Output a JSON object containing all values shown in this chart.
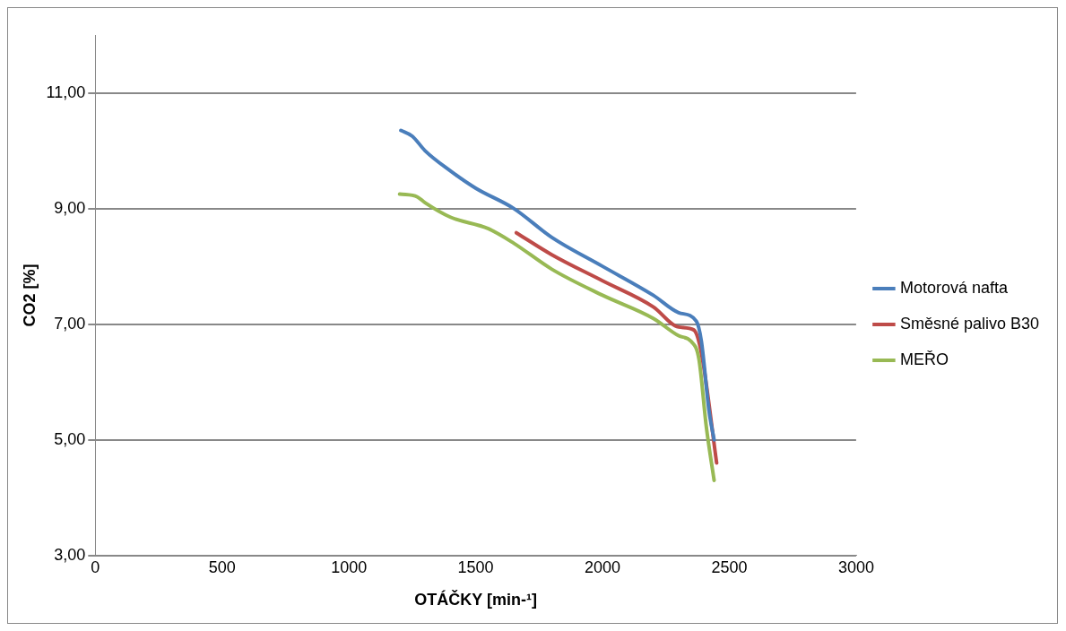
{
  "chart_data": {
    "type": "line",
    "xlabel": "OTÁČKY [min-¹]",
    "ylabel": "CO2 [%]",
    "xlim": [
      0,
      3000
    ],
    "xticks": [
      0,
      500,
      1000,
      1500,
      2000,
      2500,
      3000
    ],
    "ylim": [
      3,
      12
    ],
    "yticks": [
      {
        "value": 3,
        "label": "3,00"
      },
      {
        "value": 5,
        "label": "5,00"
      },
      {
        "value": 7,
        "label": "7,00"
      },
      {
        "value": 9,
        "label": "9,00"
      },
      {
        "value": 11,
        "label": "11,00"
      }
    ],
    "grid": "y",
    "legend": "right",
    "marker": "none",
    "line_style": "solid",
    "series": [
      {
        "name": "Motorová nafta",
        "color": "#4a7ebb",
        "x": [
          1205,
          1250,
          1300,
          1400,
          1500,
          1650,
          1800,
          2000,
          2200,
          2300,
          2370,
          2390,
          2420,
          2440
        ],
        "values": [
          10.35,
          10.25,
          10.0,
          9.65,
          9.35,
          9.0,
          8.5,
          8.0,
          7.5,
          7.2,
          7.05,
          6.7,
          5.5,
          5.0
        ]
      },
      {
        "name": "Směsné palivo B30",
        "color": "#be4b48",
        "x": [
          1660,
          1800,
          2000,
          2200,
          2300,
          2360,
          2390,
          2450
        ],
        "values": [
          8.58,
          8.2,
          7.75,
          7.3,
          6.95,
          6.9,
          6.5,
          4.6
        ]
      },
      {
        "name": "MEŘO",
        "color": "#98b954",
        "x": [
          1200,
          1270,
          1300,
          1400,
          1550,
          1650,
          1800,
          2000,
          2200,
          2300,
          2350,
          2380,
          2410,
          2440
        ],
        "values": [
          9.25,
          9.2,
          9.1,
          8.85,
          8.65,
          8.4,
          7.95,
          7.5,
          7.1,
          6.8,
          6.7,
          6.4,
          5.2,
          4.3
        ]
      }
    ]
  }
}
